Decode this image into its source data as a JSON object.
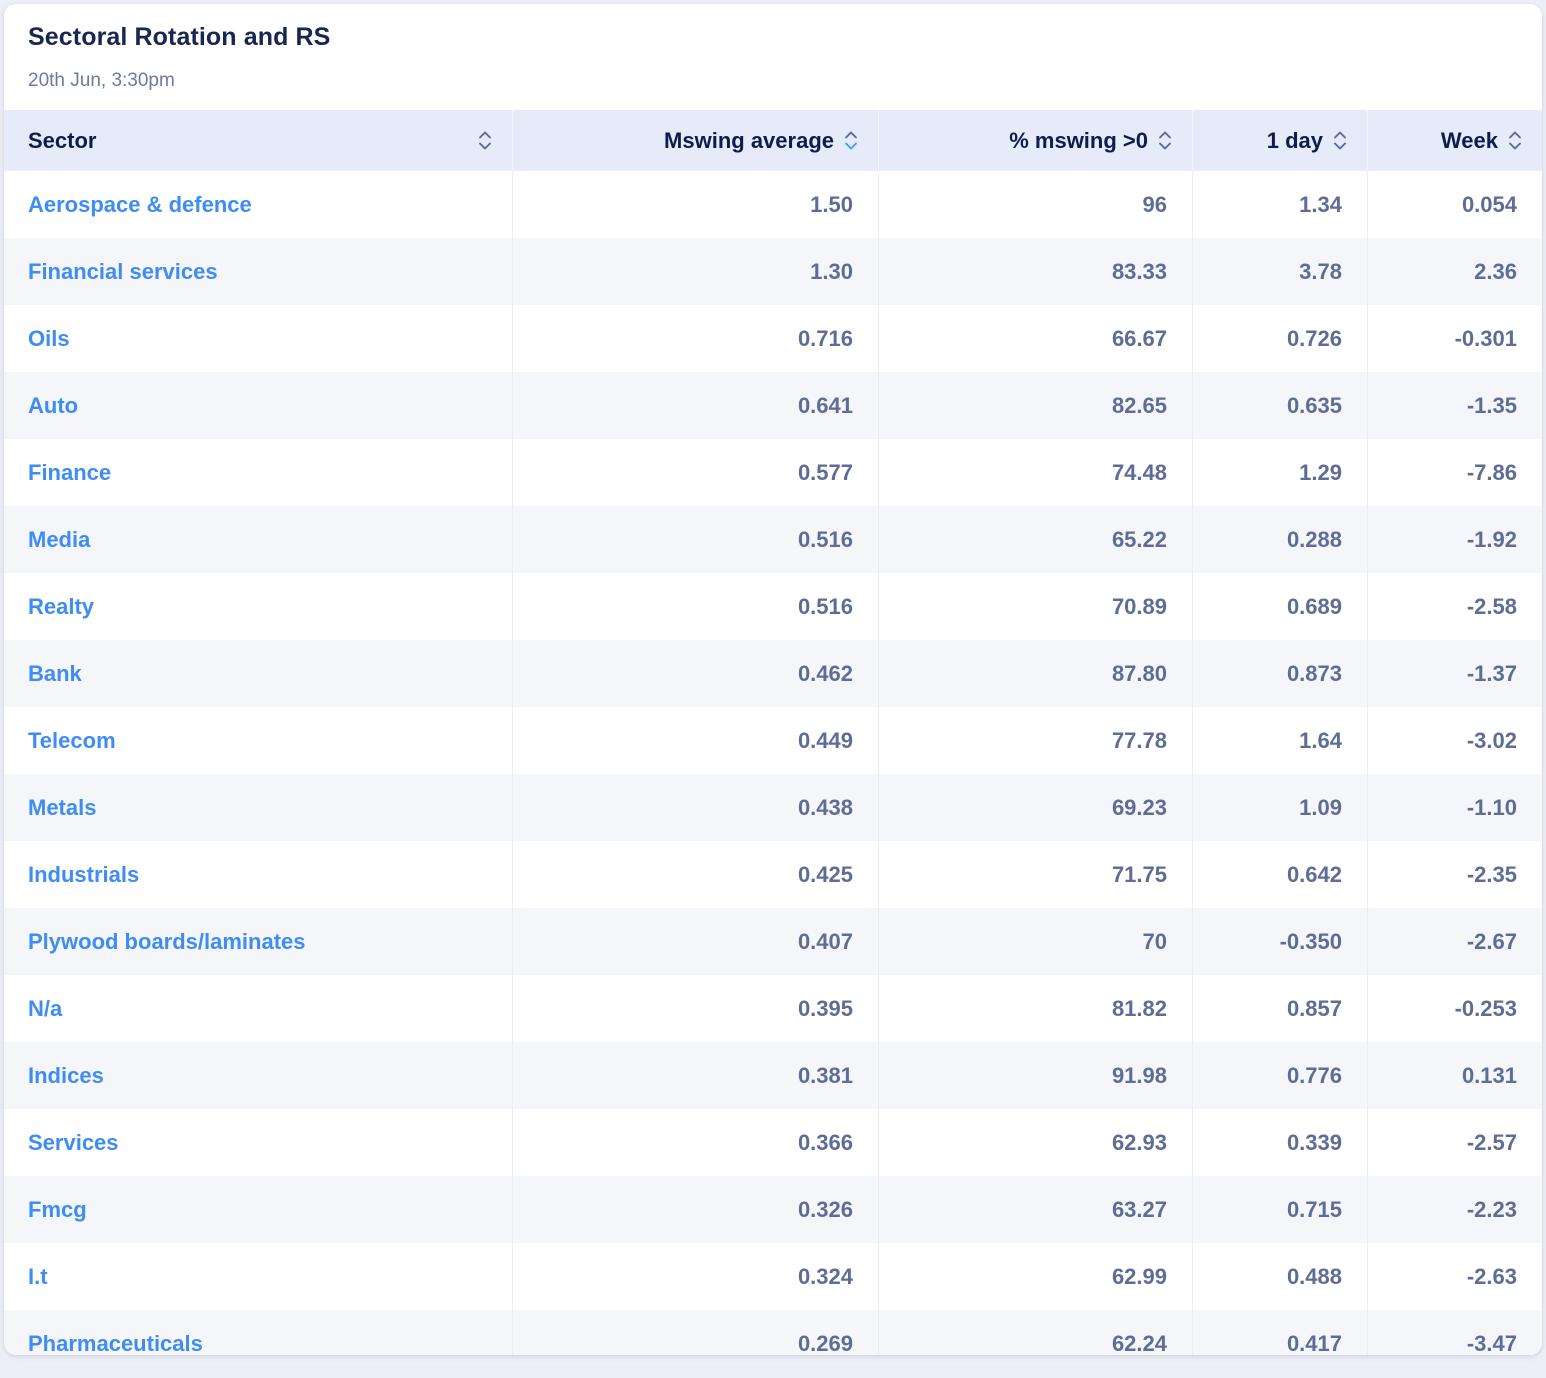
{
  "card": {
    "title": "Sectoral Rotation and RS",
    "timestamp": "20th Jun, 3:30pm"
  },
  "table": {
    "columns": [
      {
        "key": "sector",
        "label": "Sector",
        "align": "left",
        "sort": "none"
      },
      {
        "key": "mswing_avg",
        "label": "Mswing average",
        "align": "right",
        "sort": "desc"
      },
      {
        "key": "pct_mswing_gt0",
        "label": "% mswing >0",
        "align": "right",
        "sort": "none"
      },
      {
        "key": "one_day",
        "label": "1 day",
        "align": "right",
        "sort": "none"
      },
      {
        "key": "week",
        "label": "Week",
        "align": "right",
        "sort": "none"
      }
    ],
    "rows": [
      {
        "cells": [
          "Aerospace & defence",
          "1.50",
          "96",
          "1.34",
          "0.054"
        ]
      },
      {
        "cells": [
          "Financial services",
          "1.30",
          "83.33",
          "3.78",
          "2.36"
        ]
      },
      {
        "cells": [
          "Oils",
          "0.716",
          "66.67",
          "0.726",
          "-0.301"
        ]
      },
      {
        "cells": [
          "Auto",
          "0.641",
          "82.65",
          "0.635",
          "-1.35"
        ]
      },
      {
        "cells": [
          "Finance",
          "0.577",
          "74.48",
          "1.29",
          "-7.86"
        ]
      },
      {
        "cells": [
          "Media",
          "0.516",
          "65.22",
          "0.288",
          "-1.92"
        ]
      },
      {
        "cells": [
          "Realty",
          "0.516",
          "70.89",
          "0.689",
          "-2.58"
        ]
      },
      {
        "cells": [
          "Bank",
          "0.462",
          "87.80",
          "0.873",
          "-1.37"
        ]
      },
      {
        "cells": [
          "Telecom",
          "0.449",
          "77.78",
          "1.64",
          "-3.02"
        ]
      },
      {
        "cells": [
          "Metals",
          "0.438",
          "69.23",
          "1.09",
          "-1.10"
        ]
      },
      {
        "cells": [
          "Industrials",
          "0.425",
          "71.75",
          "0.642",
          "-2.35"
        ]
      },
      {
        "cells": [
          "Plywood boards/laminates",
          "0.407",
          "70",
          "-0.350",
          "-2.67"
        ]
      },
      {
        "cells": [
          "N/a",
          "0.395",
          "81.82",
          "0.857",
          "-0.253"
        ]
      },
      {
        "cells": [
          "Indices",
          "0.381",
          "91.98",
          "0.776",
          "0.131"
        ]
      },
      {
        "cells": [
          "Services",
          "0.366",
          "62.93",
          "0.339",
          "-2.57"
        ]
      },
      {
        "cells": [
          "Fmcg",
          "0.326",
          "63.27",
          "0.715",
          "-2.23"
        ]
      },
      {
        "cells": [
          "I.t",
          "0.324",
          "62.99",
          "0.488",
          "-2.63"
        ]
      },
      {
        "cells": [
          "Pharmaceuticals",
          "0.269",
          "62.24",
          "0.417",
          "-3.47"
        ]
      }
    ]
  },
  "icons": {
    "sort_asc": "chevron-up-icon",
    "sort_desc": "chevron-down-icon"
  },
  "colors": {
    "page_bg": "#edeff6",
    "card_bg": "#ffffff",
    "title_text": "#1a2550",
    "subtitle_text": "#6c7aa4",
    "header_bg": "#e5ebf9",
    "header_text": "#0f1c4d",
    "sector_link": "#3e8cf4",
    "value_text": "#5f6d96",
    "row_alt_bg": "#f4f6fa",
    "active_sort": "#4c9bf7",
    "inactive_sort": "#5b6a94"
  }
}
